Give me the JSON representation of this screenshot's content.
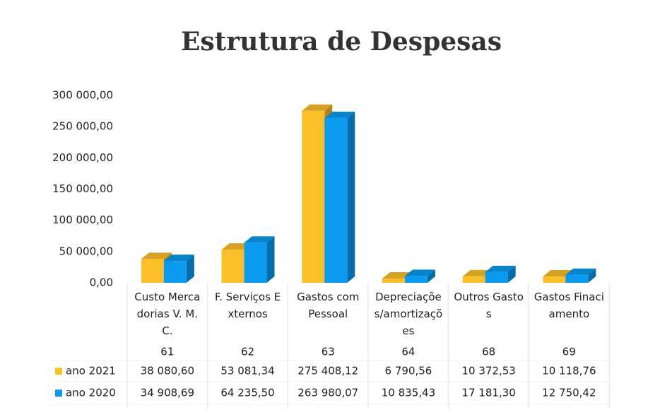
{
  "chart_data": {
    "type": "bar3d",
    "title": "Estrutura de Despesas",
    "categories": [
      "Custo Mercadorias V. M. C.",
      "F. Serviços Externos",
      "Gastos com Pessoal",
      "Depreciações/amortizações",
      "Outros Gastos",
      "Gastos Finaciamento"
    ],
    "codes": [
      "61",
      "62",
      "63",
      "64",
      "68",
      "69"
    ],
    "series": [
      {
        "name": "ano 2021",
        "color": "#fbbf2a",
        "values": [
          38080.6,
          53081.34,
          275408.12,
          6790.56,
          10372.53,
          10118.76
        ],
        "value_labels": [
          "38 080,60",
          "53 081,34",
          "275 408,12",
          "6 790,56",
          "10 372,53",
          "10 118,76"
        ]
      },
      {
        "name": "ano 2020",
        "color": "#0a9bf0",
        "values": [
          34908.69,
          64235.5,
          263980.07,
          10835.43,
          17181.3,
          12750.42
        ],
        "value_labels": [
          "34 908,69",
          "64 235,50",
          "263 980,07",
          "10 835,43",
          "17 181,30",
          "12 750,42"
        ]
      }
    ],
    "ylim": [
      0,
      300000
    ],
    "yticks": [
      {
        "value": 0,
        "label": "0,00"
      },
      {
        "value": 50000,
        "label": "50 000,00"
      },
      {
        "value": 100000,
        "label": "100 000,00"
      },
      {
        "value": 150000,
        "label": "150 000,00"
      },
      {
        "value": 200000,
        "label": "200 000,00"
      },
      {
        "value": 250000,
        "label": "250 000,00"
      },
      {
        "value": 300000,
        "label": "300 000,00"
      }
    ],
    "grid": false
  }
}
